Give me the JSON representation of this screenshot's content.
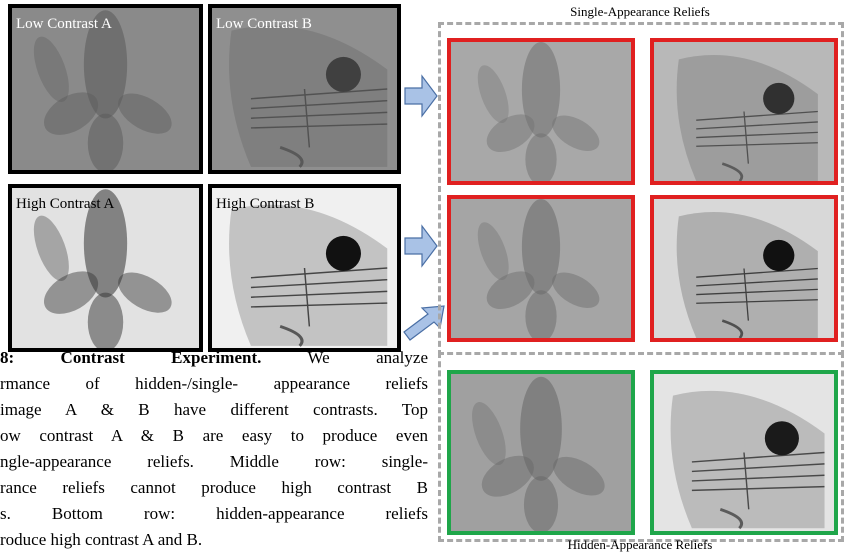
{
  "panels": {
    "input_labels": [
      "Low Contrast A",
      "Low Contrast B",
      "High Contrast A",
      "High Contrast B"
    ],
    "single_title": "Single-Appearance Reliefs",
    "hidden_title": "Hidden-Appearance Reliefs"
  },
  "caption": {
    "heading": "8: Contrast Experiment.",
    "lines": [
      "We analyze",
      "rmance of hidden-/single- appearance reliefs",
      "image A & B have different contrasts. Top",
      "ow contrast A & B are easy to produce even",
      "ngle-appearance reliefs. Middle row: single-",
      "rance reliefs cannot produce high contrast B",
      "s. Bottom row: hidden-appearance reliefs",
      "roduce high contrast A and B."
    ]
  }
}
